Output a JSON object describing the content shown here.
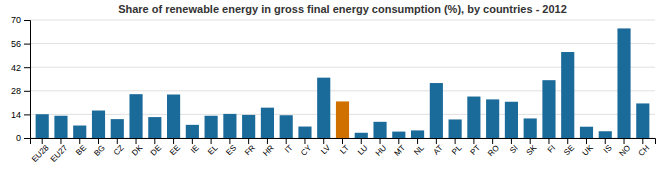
{
  "chart_data": {
    "type": "bar",
    "title": "Share of renewable energy in gross final energy consumption (%), by countries - 2012",
    "categories": [
      "EU28",
      "EU27",
      "BE",
      "BG",
      "CZ",
      "DK",
      "DE",
      "EE",
      "IE",
      "EL",
      "ES",
      "FR",
      "HR",
      "IT",
      "CY",
      "LV",
      "LT",
      "LU",
      "HU",
      "MT",
      "NL",
      "AT",
      "PL",
      "PT",
      "RO",
      "SI",
      "SK",
      "FI",
      "SE",
      "UK",
      "IS",
      "NO",
      "CH"
    ],
    "values": [
      14.1,
      13.2,
      7.4,
      16.3,
      11.2,
      26.0,
      12.4,
      25.8,
      7.8,
      13.2,
      14.3,
      13.7,
      18.0,
      13.5,
      6.8,
      35.8,
      21.7,
      3.1,
      9.6,
      3.8,
      4.5,
      32.6,
      11.0,
      24.6,
      22.9,
      21.5,
      11.6,
      34.3,
      51.0,
      6.7,
      4.0,
      65.0,
      20.5
    ],
    "colors": [
      "#1a6a9a",
      "#1a6a9a",
      "#1a6a9a",
      "#1a6a9a",
      "#1a6a9a",
      "#1a6a9a",
      "#1a6a9a",
      "#1a6a9a",
      "#1a6a9a",
      "#1a6a9a",
      "#1a6a9a",
      "#1a6a9a",
      "#1a6a9a",
      "#1a6a9a",
      "#1a6a9a",
      "#1a6a9a",
      "#d07000",
      "#1a6a9a",
      "#1a6a9a",
      "#1a6a9a",
      "#1a6a9a",
      "#1a6a9a",
      "#1a6a9a",
      "#1a6a9a",
      "#1a6a9a",
      "#1a6a9a",
      "#1a6a9a",
      "#1a6a9a",
      "#1a6a9a",
      "#1a6a9a",
      "#1a6a9a",
      "#1a6a9a",
      "#1a6a9a"
    ],
    "ylim": [
      0,
      70
    ],
    "yticks": [
      0,
      14,
      28,
      42,
      56,
      70
    ],
    "grid": true
  }
}
